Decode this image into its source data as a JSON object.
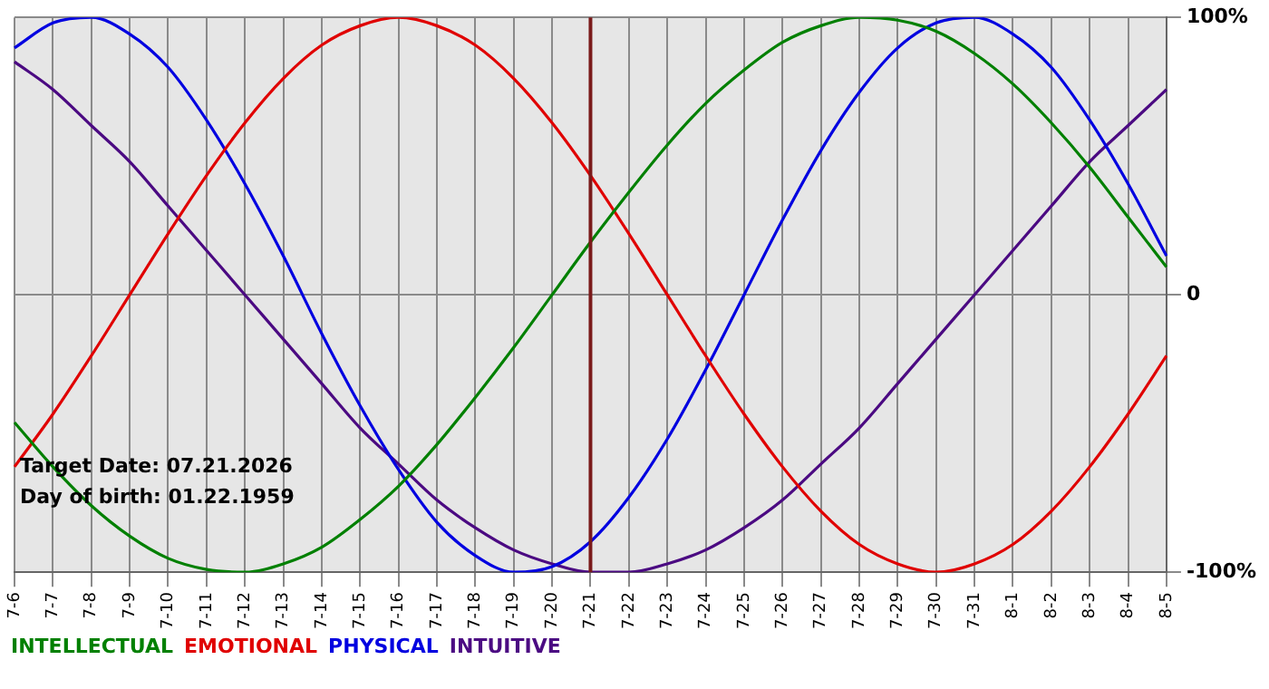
{
  "chart_data": {
    "type": "line",
    "categories": [
      "7-6",
      "7-7",
      "7-8",
      "7-9",
      "7-10",
      "7-11",
      "7-12",
      "7-13",
      "7-14",
      "7-15",
      "7-16",
      "7-17",
      "7-18",
      "7-19",
      "7-20",
      "7-21",
      "7-22",
      "7-23",
      "7-24",
      "7-25",
      "7-26",
      "7-27",
      "7-28",
      "7-29",
      "7-30",
      "7-31",
      "8-1",
      "8-2",
      "8-3",
      "8-4",
      "8-5"
    ],
    "series": [
      {
        "name": "INTELLECTUAL",
        "color": "#008000",
        "values": [
          -46,
          -62,
          -76,
          -87,
          -95,
          -99,
          -100,
          -97,
          -91,
          -81,
          -69,
          -54,
          -37,
          -19,
          0,
          19,
          37,
          54,
          69,
          81,
          91,
          97,
          100,
          99,
          95,
          87,
          76,
          62,
          46,
          28,
          10
        ]
      },
      {
        "name": "EMOTIONAL",
        "color": "#e00000",
        "values": [
          -62,
          -43,
          -22,
          0,
          22,
          43,
          62,
          78,
          90,
          97,
          100,
          97,
          90,
          78,
          62,
          43,
          22,
          0,
          -22,
          -43,
          -62,
          -78,
          -90,
          -97,
          -100,
          -97,
          -90,
          -78,
          -62,
          -43,
          -22
        ]
      },
      {
        "name": "PHYSICAL",
        "color": "#0000e0",
        "values": [
          89,
          98,
          100,
          94,
          82,
          63,
          40,
          14,
          -14,
          -40,
          -63,
          -82,
          -94,
          -100,
          -98,
          -89,
          -73,
          -52,
          -27,
          0,
          27,
          52,
          73,
          89,
          98,
          100,
          94,
          82,
          63,
          40,
          14
        ]
      },
      {
        "name": "INTUITIVE",
        "color": "#4b0a82",
        "values": [
          84,
          74,
          61,
          48,
          32,
          16,
          0,
          -16,
          -32,
          -48,
          -61,
          -74,
          -84,
          -92,
          -97,
          -100,
          -100,
          -97,
          -92,
          -84,
          -74,
          -61,
          -48,
          -32,
          -16,
          0,
          16,
          32,
          48,
          61,
          74
        ]
      }
    ],
    "ylim": [
      -100,
      100
    ],
    "yticks": [
      {
        "value": -100,
        "label": "-100%"
      },
      0,
      {
        "value": 100,
        "label": "100%"
      }
    ],
    "grid": true,
    "legend": "bottom",
    "marker": "none",
    "line_style": "solid",
    "ref_lines": [
      {
        "axis": "x",
        "value": "7-21",
        "color": "#7a1a1a"
      }
    ],
    "annotations": [
      "Target Date: 07.21.2026",
      "Day of birth: 01.22.1959"
    ]
  }
}
